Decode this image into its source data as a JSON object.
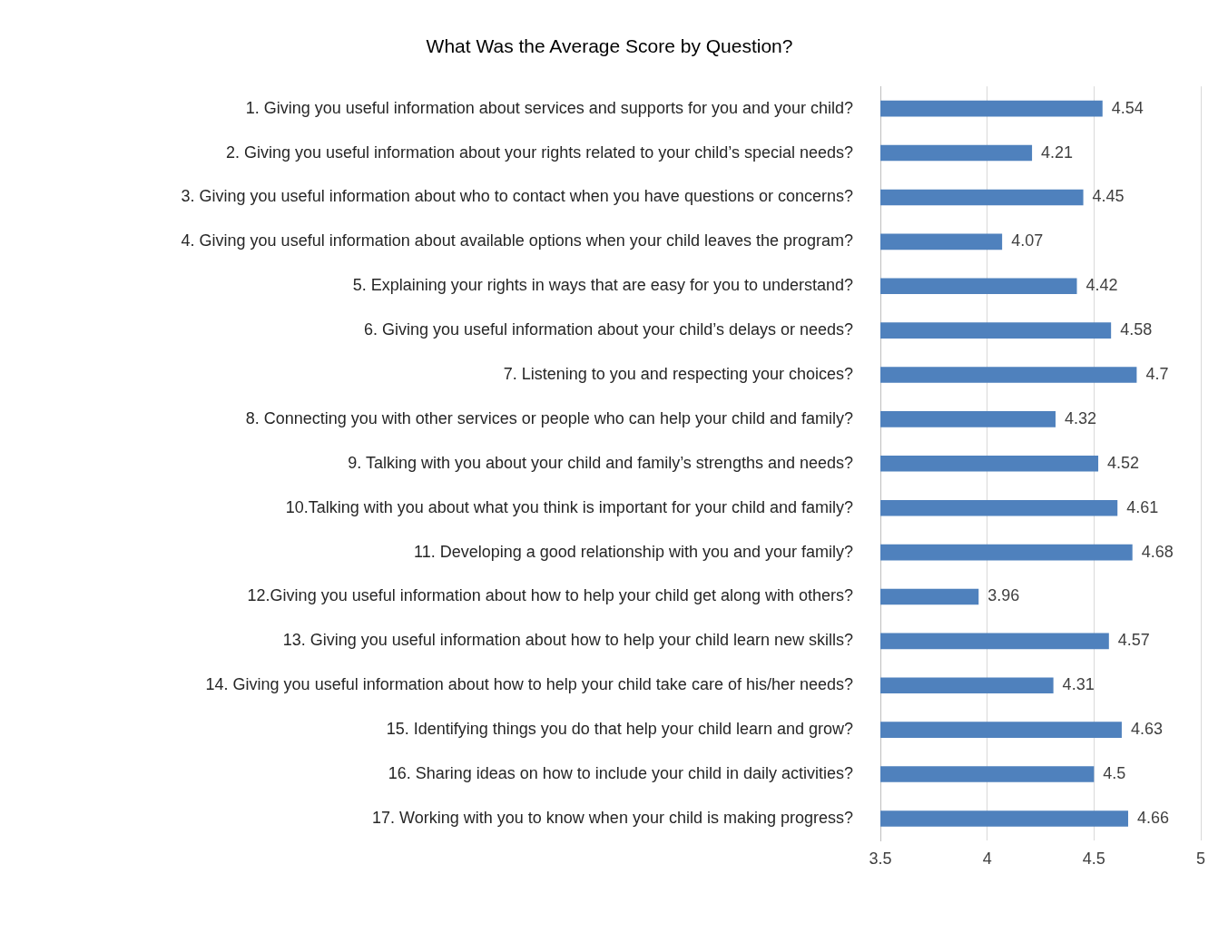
{
  "chart_data": {
    "type": "bar",
    "orientation": "horizontal",
    "title": "What Was the Average Score by Question?",
    "categories": [
      "1. Giving you useful information about services and supports for you and your child?",
      "2. Giving you useful information about your rights related to your child’s special needs?",
      "3. Giving you useful information about who to contact when you have questions or concerns?",
      "4. Giving you useful information about available options when your child leaves the program?",
      "5. Explaining your rights in ways that are easy for you to understand?",
      "6. Giving you useful information about your child’s delays or needs?",
      "7. Listening to you and respecting your choices?",
      "8. Connecting you with other services or people who can help your child and family?",
      "9. Talking with you about your child and family’s strengths and needs?",
      "10.Talking with you about what you think is important for your child and family?",
      "11. Developing a good relationship with you and your family?",
      "12.Giving you useful information about how to help your child get along with others?",
      "13. Giving you useful information about how to help your child learn new skills?",
      "14. Giving you useful information about how to help your child take care of his/her needs?",
      "15. Identifying things you do that help your child learn and grow?",
      "16. Sharing ideas on how to include your child in daily activities?",
      "17. Working with you to know when your child is making progress?"
    ],
    "values": [
      4.54,
      4.21,
      4.45,
      4.07,
      4.42,
      4.58,
      4.7,
      4.32,
      4.52,
      4.61,
      4.68,
      3.96,
      4.57,
      4.31,
      4.63,
      4.5,
      4.66
    ],
    "color": "#4f81bd",
    "xlim": [
      3.5,
      5
    ],
    "xticks": [
      3.5,
      4,
      4.5,
      5
    ],
    "grid": "x",
    "data_labels": true
  }
}
